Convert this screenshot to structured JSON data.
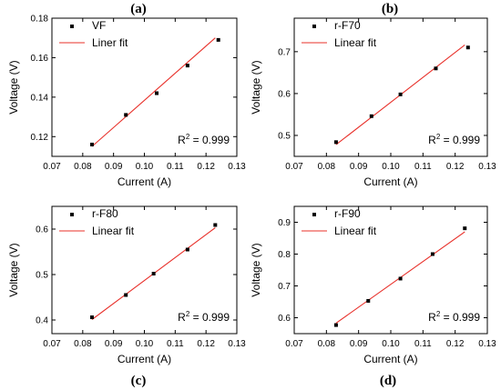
{
  "chart_data": [
    {
      "panel": "(a)",
      "type": "scatter",
      "xlabel": "Current (A)",
      "ylabel": "Voltage (V)",
      "xlim": [
        0.07,
        0.13
      ],
      "ylim": [
        0.11,
        0.18
      ],
      "xticks": [
        "0.07",
        "0.08",
        "0.09",
        "0.10",
        "0.11",
        "0.12",
        "0.13"
      ],
      "yticks": [
        "0.12",
        "0.14",
        "0.16",
        "0.18"
      ],
      "series": [
        {
          "name": "VF",
          "marker": "square",
          "color": "#000000",
          "x": [
            0.083,
            0.094,
            0.104,
            0.114,
            0.124
          ],
          "y": [
            0.116,
            0.131,
            0.142,
            0.156,
            0.169
          ]
        },
        {
          "name": "Liner fit",
          "marker": "line",
          "color": "#e8302a",
          "x": [
            0.083,
            0.123
          ],
          "y": [
            0.115,
            0.17
          ]
        }
      ],
      "annotation": {
        "prefix": "R",
        "sup": "2",
        "suffix": " = 0.999"
      },
      "legend_position": "top-left"
    },
    {
      "panel": "(b)",
      "type": "scatter",
      "xlabel": "Current (A)",
      "ylabel": "Voltage (V)",
      "xlim": [
        0.07,
        0.13
      ],
      "ylim": [
        0.45,
        0.78
      ],
      "xticks": [
        "0.07",
        "0.08",
        "0.09",
        "0.10",
        "0.11",
        "0.12",
        "0.13"
      ],
      "yticks": [
        "0.5",
        "0.6",
        "0.7"
      ],
      "series": [
        {
          "name": "r-F70",
          "marker": "square",
          "color": "#000000",
          "x": [
            0.083,
            0.094,
            0.103,
            0.114,
            0.124
          ],
          "y": [
            0.484,
            0.546,
            0.598,
            0.66,
            0.71
          ]
        },
        {
          "name": "Linear fit",
          "marker": "line",
          "color": "#e8302a",
          "x": [
            0.083,
            0.123
          ],
          "y": [
            0.478,
            0.716
          ]
        }
      ],
      "annotation": {
        "prefix": "R",
        "sup": "2",
        "suffix": " = 0.999"
      },
      "legend_position": "top-left"
    },
    {
      "panel": "(c)",
      "type": "scatter",
      "xlabel": "Current (A)",
      "ylabel": "Voltage (V)",
      "xlim": [
        0.07,
        0.13
      ],
      "ylim": [
        0.37,
        0.65
      ],
      "xticks": [
        "0.07",
        "0.08",
        "0.09",
        "0.10",
        "0.11",
        "0.12",
        "0.13"
      ],
      "yticks": [
        "0.4",
        "0.5",
        "0.6"
      ],
      "series": [
        {
          "name": "r-F80",
          "marker": "square",
          "color": "#000000",
          "x": [
            0.083,
            0.094,
            0.103,
            0.114,
            0.123
          ],
          "y": [
            0.406,
            0.455,
            0.502,
            0.555,
            0.609
          ]
        },
        {
          "name": "Linear fit",
          "marker": "line",
          "color": "#e8302a",
          "x": [
            0.083,
            0.123
          ],
          "y": [
            0.401,
            0.603
          ]
        }
      ],
      "annotation": {
        "prefix": "R",
        "sup": "2",
        "suffix": " = 0.999"
      },
      "legend_position": "top-left"
    },
    {
      "panel": "(d)",
      "type": "scatter",
      "xlabel": "Current (A)",
      "ylabel": "Voltage (V)",
      "xlim": [
        0.07,
        0.13
      ],
      "ylim": [
        0.55,
        0.95
      ],
      "xticks": [
        "0.07",
        "0.08",
        "0.09",
        "0.10",
        "0.11",
        "0.12",
        "0.13"
      ],
      "yticks": [
        "0.6",
        "0.7",
        "0.8",
        "0.9"
      ],
      "series": [
        {
          "name": "r-F90",
          "marker": "square",
          "color": "#000000",
          "x": [
            0.083,
            0.093,
            0.103,
            0.113,
            0.123
          ],
          "y": [
            0.577,
            0.653,
            0.723,
            0.8,
            0.881
          ]
        },
        {
          "name": "Linear fit",
          "marker": "line",
          "color": "#e8302a",
          "x": [
            0.083,
            0.123
          ],
          "y": [
            0.583,
            0.87
          ]
        }
      ],
      "annotation": {
        "prefix": "R",
        "sup": "2",
        "suffix": " = 0.999"
      },
      "legend_position": "top-left"
    }
  ]
}
